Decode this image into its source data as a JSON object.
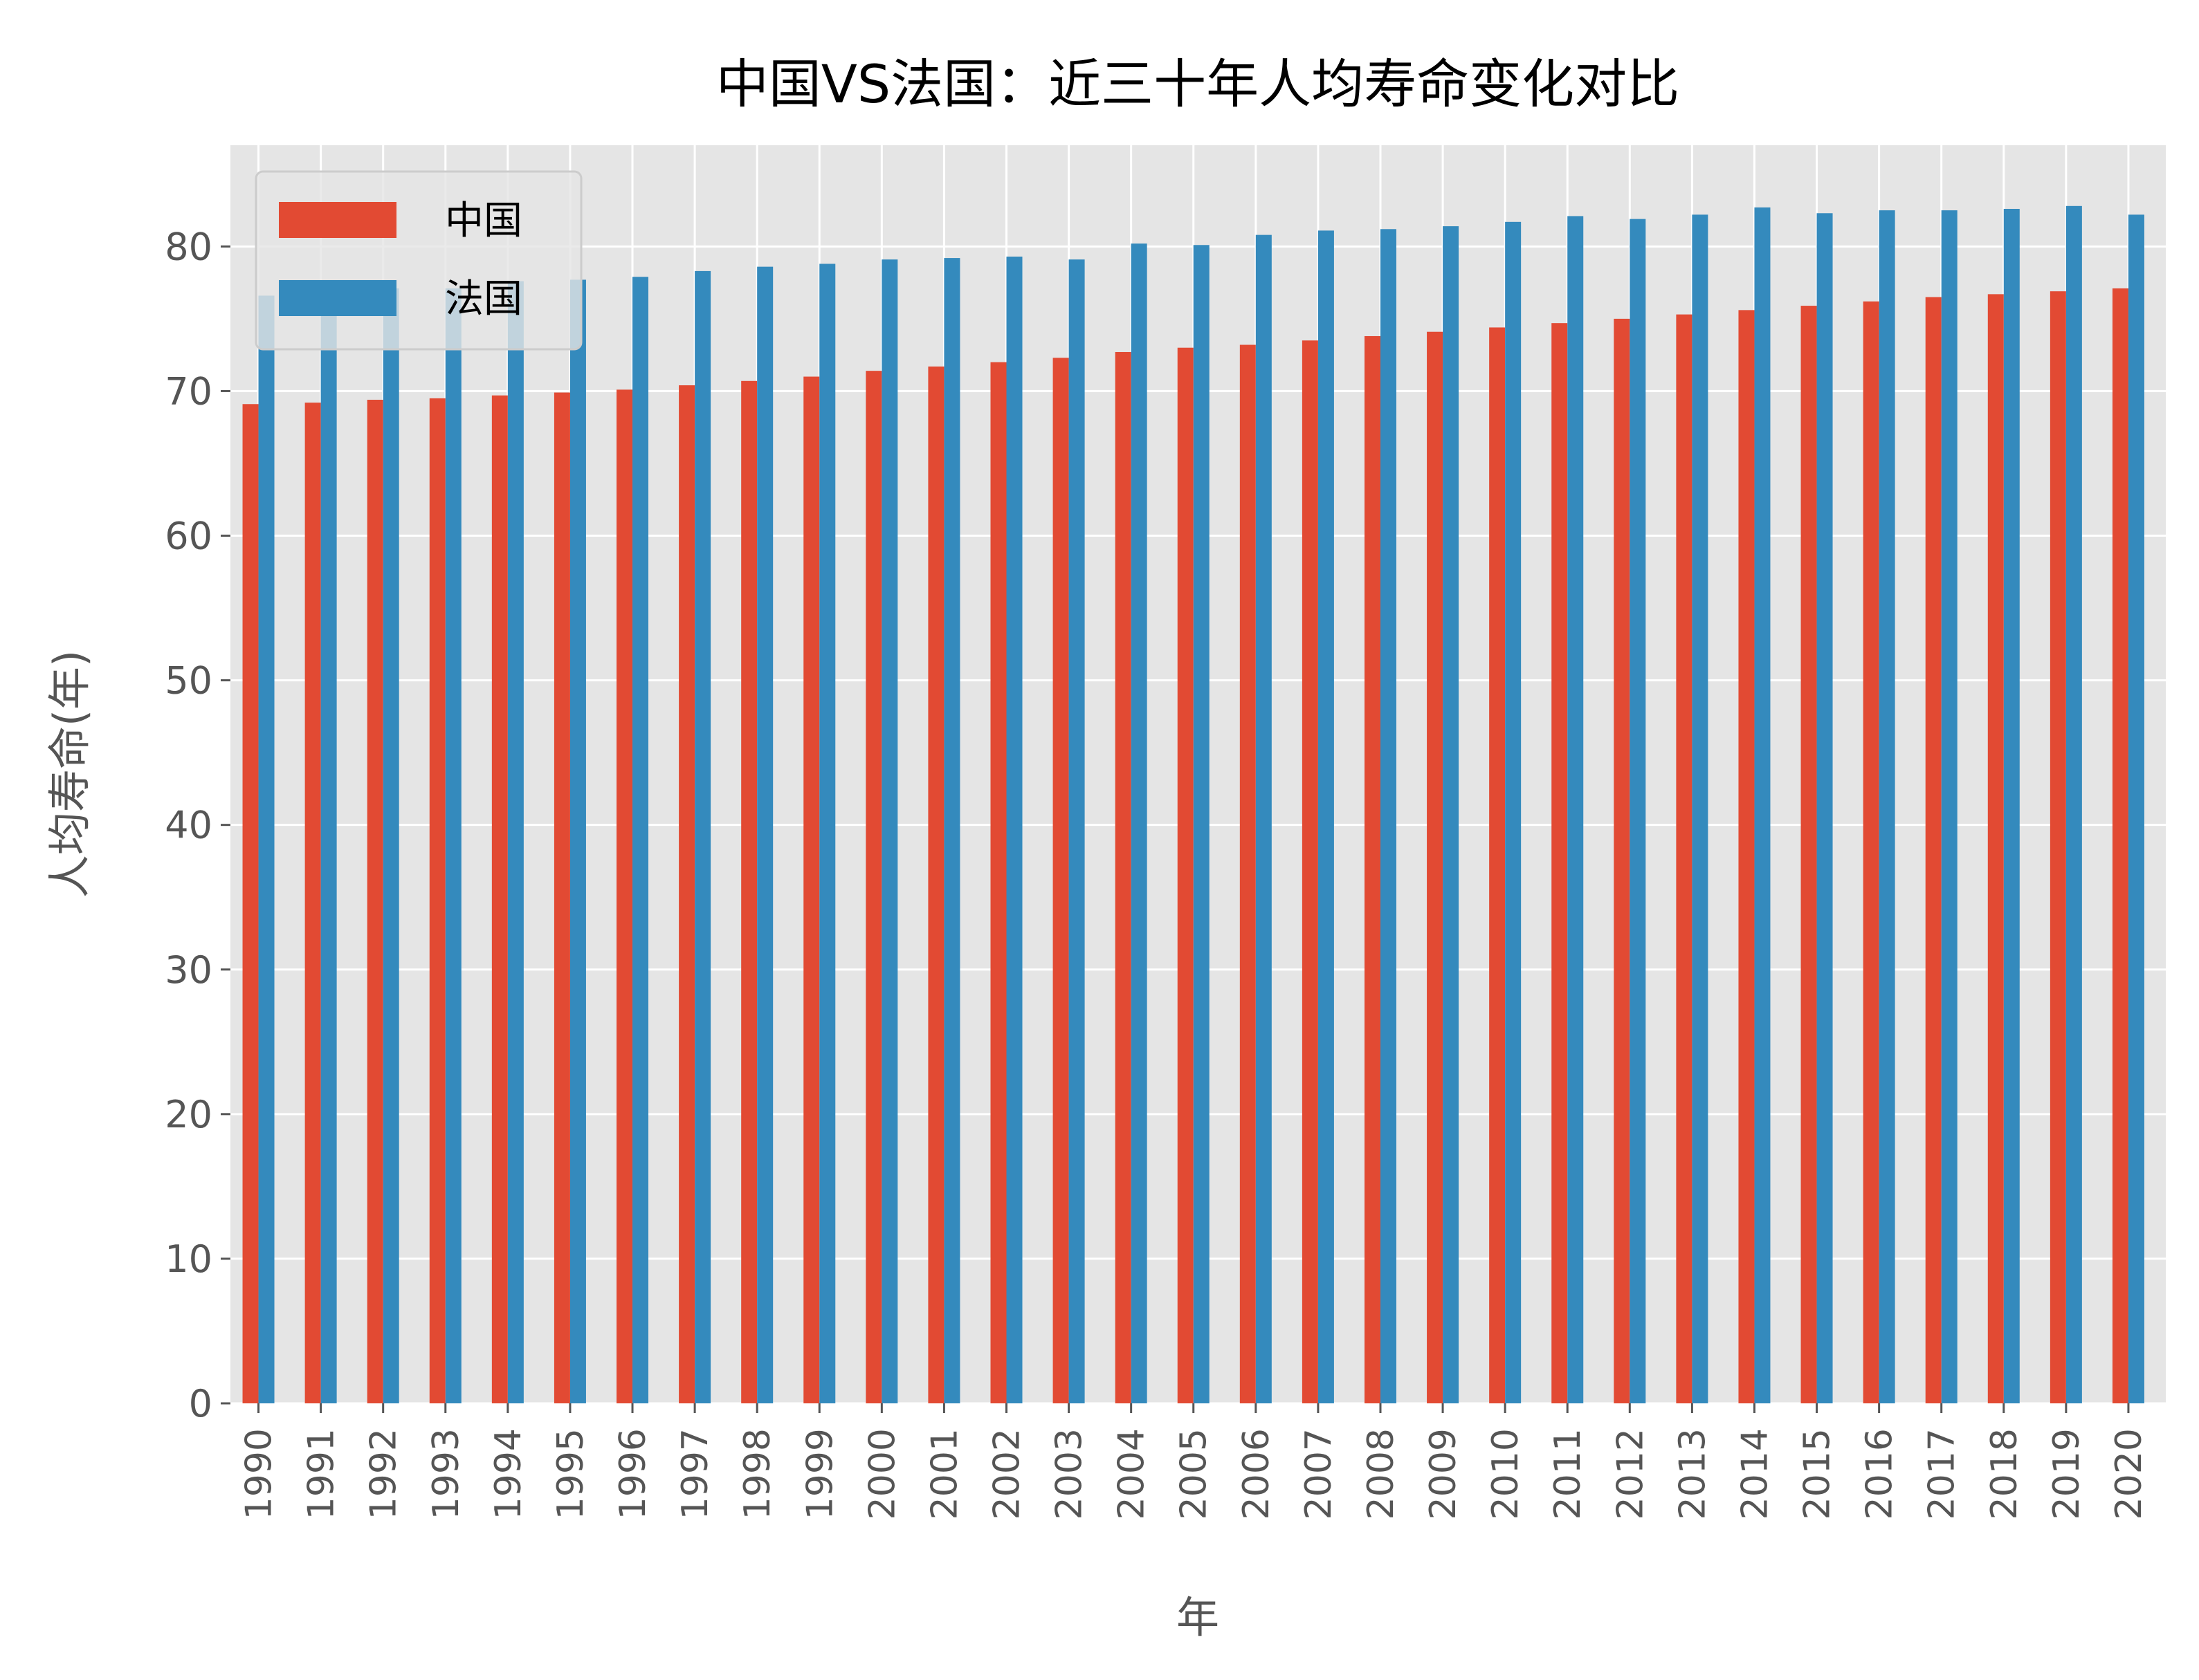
{
  "chart_data": {
    "type": "bar",
    "title": "中国VS法国：近三十年人均寿命变化对比",
    "xlabel": "年",
    "ylabel": "人均寿命(年)",
    "ylim": [
      0,
      87
    ],
    "yticks": [
      0,
      10,
      20,
      30,
      40,
      50,
      60,
      70,
      80
    ],
    "grid": true,
    "legend_position": "top-left",
    "categories": [
      "1990",
      "1991",
      "1992",
      "1993",
      "1994",
      "1995",
      "1996",
      "1997",
      "1998",
      "1999",
      "2000",
      "2001",
      "2002",
      "2003",
      "2004",
      "2005",
      "2006",
      "2007",
      "2008",
      "2009",
      "2010",
      "2011",
      "2012",
      "2013",
      "2014",
      "2015",
      "2016",
      "2017",
      "2018",
      "2019",
      "2020"
    ],
    "series": [
      {
        "name": "中国",
        "color": "#E24A33",
        "values": [
          69.1,
          69.2,
          69.4,
          69.5,
          69.7,
          69.9,
          70.1,
          70.4,
          70.7,
          71.0,
          71.4,
          71.7,
          72.0,
          72.3,
          72.7,
          73.0,
          73.2,
          73.5,
          73.8,
          74.1,
          74.4,
          74.7,
          75.0,
          75.3,
          75.6,
          75.9,
          76.2,
          76.5,
          76.7,
          76.9,
          77.1
        ]
      },
      {
        "name": "法国",
        "color": "#348ABD",
        "values": [
          76.6,
          76.9,
          77.1,
          77.1,
          77.6,
          77.7,
          77.9,
          78.3,
          78.6,
          78.8,
          79.1,
          79.2,
          79.3,
          79.1,
          80.2,
          80.1,
          80.8,
          81.1,
          81.2,
          81.4,
          81.7,
          82.1,
          81.9,
          82.2,
          82.7,
          82.3,
          82.5,
          82.5,
          82.6,
          82.8,
          82.2
        ]
      }
    ]
  }
}
